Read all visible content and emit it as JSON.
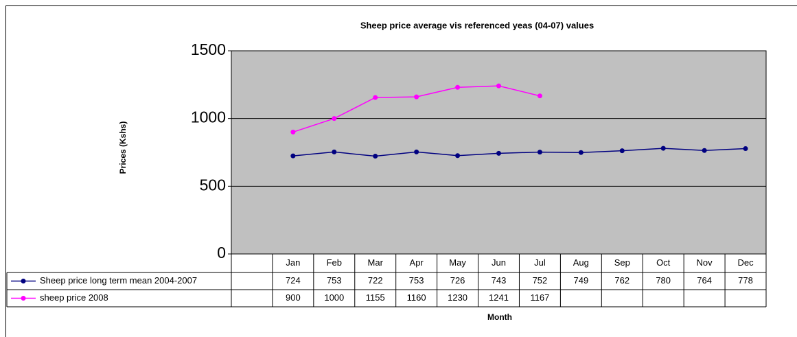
{
  "chart_data": {
    "type": "line",
    "title": "Sheep price average  vis referenced yeas (04-07) values",
    "x_label": "Month",
    "y_label": "Prices (Kshs)",
    "categories": [
      null,
      "Jan",
      "Feb",
      "Mar",
      "Apr",
      "May",
      "Jun",
      "Jul",
      "Aug",
      "Sep",
      "Oct",
      "Nov",
      "Dec"
    ],
    "series": [
      {
        "name": "Sheep price long term mean 2004-2007",
        "color": "#000080",
        "values": [
          null,
          724,
          753,
          722,
          753,
          726,
          743,
          752,
          749,
          762,
          780,
          764,
          778
        ]
      },
      {
        "name": "sheep price 2008",
        "color": "#ff00ff",
        "values": [
          null,
          900,
          1000,
          1155,
          1160,
          1230,
          1241,
          1167,
          null,
          null,
          null,
          null,
          null
        ]
      }
    ],
    "ylim": [
      0,
      1500
    ],
    "yticks": [
      0,
      500,
      1000,
      1500
    ],
    "grid": true,
    "plot_background": "#c0c0c0"
  }
}
